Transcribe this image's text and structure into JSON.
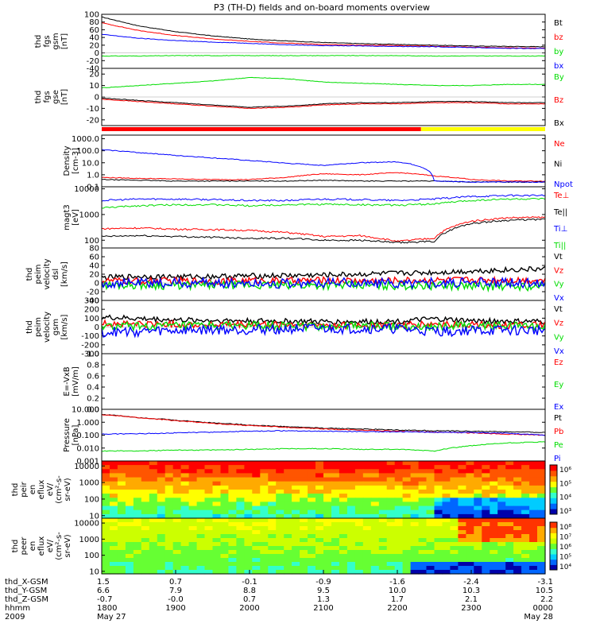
{
  "title": "P3 (TH-D) fields and on-board moments overview",
  "colors": {
    "black": "#000000",
    "red": "#ff0000",
    "green": "#00dd00",
    "blue": "#0000ff",
    "yellow": "#ffff00",
    "bright_green": "#00ff00"
  },
  "chart_data": [
    {
      "type": "line",
      "panel": "fgs_gsm",
      "ylabel_lines": [
        "thd",
        "fgs",
        "gsm",
        "[nT]"
      ],
      "ylim": [
        -40,
        100
      ],
      "ticks": [
        "100",
        "80",
        "60",
        "40",
        "20",
        "0",
        "-20",
        "-40"
      ],
      "x": [
        "1800",
        "1830",
        "1900",
        "1930",
        "2000",
        "2030",
        "2100",
        "2130",
        "2200",
        "2230",
        "2300",
        "2330",
        "0000"
      ],
      "series": [
        {
          "name": "Bt",
          "color": "#000000",
          "values": [
            93,
            70,
            55,
            44,
            36,
            31,
            27,
            24,
            22,
            20,
            18,
            17,
            16
          ]
        },
        {
          "name": "bz",
          "color": "#ff0000",
          "values": [
            78,
            58,
            45,
            36,
            30,
            25,
            22,
            20,
            19,
            17,
            15,
            13,
            12
          ]
        },
        {
          "name": "by",
          "color": "#00dd00",
          "values": [
            -8,
            -8,
            -7,
            -7,
            -7,
            -7,
            -7,
            -7,
            -7,
            -8,
            -8,
            -8,
            -8
          ]
        },
        {
          "name": "bx",
          "color": "#0000ff",
          "values": [
            48,
            38,
            32,
            28,
            25,
            21,
            19,
            18,
            17,
            16,
            14,
            12,
            11
          ]
        }
      ]
    },
    {
      "type": "line",
      "panel": "fgs_gse",
      "ylabel_lines": [
        "thd",
        "fgs",
        "gse",
        "[nT]"
      ],
      "ylim": [
        -25,
        25
      ],
      "ticks": [
        "20",
        "10",
        "0",
        "-10",
        "-20"
      ],
      "x": [
        "1800",
        "1830",
        "1900",
        "1930",
        "2000",
        "2030",
        "2100",
        "2130",
        "2200",
        "2230",
        "2300",
        "2330",
        "0000"
      ],
      "series": [
        {
          "name": "By",
          "color": "#00dd00",
          "values": [
            8,
            10,
            12,
            14,
            17,
            16,
            13,
            12,
            11,
            10,
            10,
            11,
            11
          ]
        },
        {
          "name": "Bz",
          "color": "#ff0000",
          "values": [
            -2,
            -4,
            -6,
            -8,
            -10,
            -9,
            -7,
            -6,
            -6,
            -5,
            -5,
            -6,
            -6
          ]
        },
        {
          "name": "Bx",
          "color": "#000000",
          "values": [
            -1,
            -3,
            -5,
            -7,
            -9,
            -8,
            -6,
            -5,
            -5,
            -4,
            -4,
            -5,
            -5
          ]
        }
      ]
    },
    {
      "type": "line",
      "panel": "density",
      "ylabel_lines": [
        "Density",
        "[cm-3]"
      ],
      "log": true,
      "ylim": [
        0.1,
        2000
      ],
      "ticks": [
        "1000.0",
        "100.0",
        "10.0",
        "1.0",
        "0.1"
      ],
      "x": [
        "1800",
        "1830",
        "1900",
        "1930",
        "2000",
        "2030",
        "2100",
        "2130",
        "2200",
        "2230",
        "2300",
        "2330",
        "0000"
      ],
      "series": [
        {
          "name": "Ne",
          "color": "#ff0000",
          "values": [
            0.6,
            0.5,
            0.45,
            0.4,
            0.4,
            0.6,
            1.2,
            1.0,
            1.5,
            0.8,
            0.4,
            0.3,
            0.3
          ]
        },
        {
          "name": "Ni",
          "color": "#000000",
          "values": [
            0.4,
            0.35,
            0.3,
            0.3,
            0.3,
            0.3,
            0.35,
            0.3,
            0.3,
            0.3,
            0.25,
            0.25,
            0.25
          ]
        },
        {
          "name": "Npot",
          "color": "#0000ff",
          "values": [
            120,
            70,
            40,
            25,
            15,
            9,
            6,
            10,
            12,
            0.3,
            0.25,
            0.25,
            0.25
          ]
        }
      ]
    },
    {
      "type": "line",
      "panel": "magt3",
      "ylabel_lines": [
        "magt3",
        "[eV]"
      ],
      "log": true,
      "ylim": [
        50,
        12000
      ],
      "ticks": [
        "10000",
        "1000",
        "100"
      ],
      "x": [
        "1800",
        "1830",
        "1900",
        "1930",
        "2000",
        "2030",
        "2100",
        "2130",
        "2200",
        "2230",
        "2300",
        "2330",
        "0000"
      ],
      "series": [
        {
          "name": "Te⊥",
          "color": "#ff0000",
          "values": [
            280,
            300,
            270,
            260,
            240,
            200,
            140,
            150,
            90,
            120,
            550,
            750,
            780
          ]
        },
        {
          "name": "Te||",
          "color": "#000000",
          "values": [
            140,
            150,
            140,
            130,
            120,
            120,
            100,
            100,
            80,
            90,
            450,
            600,
            650
          ]
        },
        {
          "name": "Ti⊥",
          "color": "#0000ff",
          "values": [
            3500,
            4000,
            4000,
            3800,
            3500,
            3500,
            4000,
            3800,
            3500,
            4000,
            5000,
            5500,
            5500
          ]
        },
        {
          "name": "Ti||",
          "color": "#00dd00",
          "values": [
            1800,
            2200,
            2400,
            2400,
            2200,
            2400,
            2500,
            2400,
            2300,
            2600,
            3500,
            4000,
            4000
          ]
        }
      ]
    },
    {
      "type": "line",
      "panel": "peim_velocity_dsl",
      "ylabel_lines": [
        "thd",
        "peim",
        "velocity",
        "dsl",
        "[km/s]"
      ],
      "ylim": [
        -40,
        80
      ],
      "ticks": [
        "80",
        "60",
        "40",
        "20",
        "0",
        "-20",
        "-40"
      ],
      "x": [
        "1800",
        "1830",
        "1900",
        "1930",
        "2000",
        "2030",
        "2100",
        "2130",
        "2200",
        "2230",
        "2300",
        "2330",
        "0000"
      ],
      "series": [
        {
          "name": "Vt",
          "color": "#000000",
          "values": [
            12,
            15,
            14,
            15,
            16,
            17,
            18,
            20,
            22,
            24,
            27,
            30,
            32
          ]
        },
        {
          "name": "Vz",
          "color": "#ff0000",
          "values": [
            5,
            4,
            5,
            4,
            6,
            5,
            6,
            5,
            6,
            6,
            7,
            7,
            6
          ]
        },
        {
          "name": "Vy",
          "color": "#00dd00",
          "values": [
            -5,
            -4,
            -6,
            -5,
            -5,
            -6,
            -5,
            -6,
            -6,
            -6,
            -7,
            -8,
            -8
          ]
        },
        {
          "name": "Vx",
          "color": "#0000ff",
          "values": [
            -1,
            0,
            -1,
            0,
            0,
            -1,
            0,
            0,
            -1,
            0,
            0,
            0,
            0
          ]
        }
      ]
    },
    {
      "type": "line",
      "panel": "peim_velocity_gsm",
      "ylabel_lines": [
        "thd",
        "peim",
        "velocity",
        "gsm",
        "[km/s]"
      ],
      "ylim": [
        -300,
        300
      ],
      "ticks": [
        "300",
        "200",
        "100",
        "0",
        "-100",
        "-200",
        "-300"
      ],
      "x": [
        "1800",
        "1830",
        "1900",
        "1930",
        "2000",
        "2030",
        "2100",
        "2130",
        "2200",
        "2230",
        "2300",
        "2330",
        "0000"
      ],
      "series": [
        {
          "name": "Vt",
          "color": "#000000",
          "values": [
            110,
            95,
            80,
            75,
            70,
            65,
            60,
            60,
            65,
            90,
            70,
            65,
            60
          ]
        },
        {
          "name": "Vz",
          "color": "#ff0000",
          "values": [
            40,
            35,
            30,
            25,
            25,
            25,
            20,
            20,
            20,
            30,
            25,
            20,
            20
          ]
        },
        {
          "name": "Vy",
          "color": "#00dd00",
          "values": [
            5,
            10,
            10,
            10,
            15,
            10,
            10,
            10,
            10,
            5,
            10,
            10,
            10
          ]
        },
        {
          "name": "Vx",
          "color": "#0000ff",
          "values": [
            -60,
            -50,
            -40,
            -30,
            -30,
            -20,
            -20,
            -20,
            -20,
            -50,
            -40,
            -40,
            -40
          ]
        }
      ]
    },
    {
      "type": "line",
      "panel": "e_vxb",
      "ylabel_lines": [
        "E=-VxB",
        "[mV/m]"
      ],
      "ylim": [
        0,
        1
      ],
      "ticks": [
        "1.0",
        "0.8",
        "0.6",
        "0.4",
        "0.2",
        "0.0"
      ],
      "x": [],
      "series": [
        {
          "name": "Ez",
          "color": "#ff0000",
          "values": []
        },
        {
          "name": "Ey",
          "color": "#00dd00",
          "values": []
        },
        {
          "name": "Ex",
          "color": "#0000ff",
          "values": []
        }
      ]
    },
    {
      "type": "line",
      "panel": "pressure",
      "ylabel_lines": [
        "Pressure",
        "[nPa]"
      ],
      "log": true,
      "ylim": [
        0.001,
        10
      ],
      "ticks": [
        "10.000",
        "1.000",
        "0.100",
        "0.010",
        "0.001"
      ],
      "x": [
        "1800",
        "1830",
        "1900",
        "1930",
        "2000",
        "2030",
        "2100",
        "2130",
        "2200",
        "2230",
        "2300",
        "2330",
        "0000"
      ],
      "series": [
        {
          "name": "Pt",
          "color": "#000000",
          "values": [
            4.0,
            2.3,
            1.4,
            0.9,
            0.6,
            0.45,
            0.35,
            0.3,
            0.25,
            0.22,
            0.2,
            0.18,
            0.16
          ]
        },
        {
          "name": "Pb",
          "color": "#ff0000",
          "values": [
            3.8,
            2.2,
            1.3,
            0.8,
            0.55,
            0.4,
            0.3,
            0.25,
            0.2,
            0.17,
            0.15,
            0.12,
            0.1
          ]
        },
        {
          "name": "Pe",
          "color": "#00dd00",
          "values": [
            0.006,
            0.006,
            0.007,
            0.007,
            0.008,
            0.009,
            0.009,
            0.008,
            0.008,
            0.006,
            0.015,
            0.025,
            0.03
          ]
        },
        {
          "name": "Pi",
          "color": "#0000ff",
          "values": [
            0.12,
            0.13,
            0.15,
            0.17,
            0.2,
            0.22,
            0.2,
            0.19,
            0.18,
            0.17,
            0.16,
            0.14,
            0.1
          ]
        }
      ]
    },
    {
      "type": "heatmap",
      "panel": "peir_spectrogram",
      "ylabel_lines": [
        "thd",
        "peir",
        "en",
        "eflux",
        "eV/",
        "(cm²-s-",
        "sr-eV)"
      ],
      "yticks": [
        "10000",
        "1000",
        "100",
        "10"
      ],
      "colorbar_ticks": [
        "10⁶",
        "10⁵",
        "10⁴",
        "10³"
      ]
    },
    {
      "type": "heatmap",
      "panel": "peer_spectrogram",
      "ylabel_lines": [
        "thd",
        "peer",
        "en",
        "eflux",
        "eV/",
        "(cm²-s-",
        "sr-eV)"
      ],
      "yticks": [
        "10000",
        "1000",
        "100",
        "10"
      ],
      "colorbar_ticks": [
        "10⁸",
        "10⁷",
        "10⁶",
        "10⁵",
        "10⁴"
      ]
    }
  ],
  "footer": {
    "row_labels": [
      "thd_X-GSM",
      "thd_Y-GSM",
      "thd_Z-GSM",
      "hhmm",
      "2009"
    ],
    "columns": [
      {
        "x": "1.5",
        "y": "6.6",
        "z": "-0.7",
        "time": "1800",
        "date": "May 27"
      },
      {
        "x": "0.7",
        "y": "7.9",
        "z": "-0.0",
        "time": "1900",
        "date": ""
      },
      {
        "x": "-0.1",
        "y": "8.8",
        "z": "0.7",
        "time": "2000",
        "date": ""
      },
      {
        "x": "-0.9",
        "y": "9.5",
        "z": "1.3",
        "time": "2100",
        "date": ""
      },
      {
        "x": "-1.6",
        "y": "10.0",
        "z": "1.7",
        "time": "2200",
        "date": ""
      },
      {
        "x": "-2.4",
        "y": "10.3",
        "z": "2.1",
        "time": "2300",
        "date": ""
      },
      {
        "x": "-3.1",
        "y": "10.5",
        "z": "2.2",
        "time": "0000",
        "date": "May 28"
      }
    ]
  }
}
